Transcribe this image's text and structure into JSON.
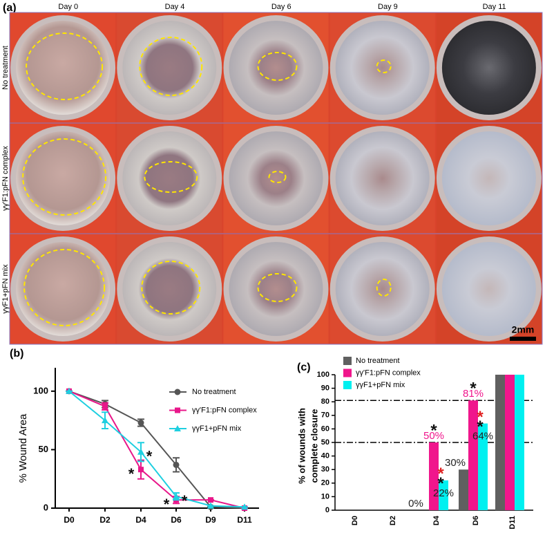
{
  "panel_a": {
    "label": "(a)",
    "days": [
      "Day 0",
      "Day 4",
      "Day 6",
      "Day 9",
      "Day  11"
    ],
    "rows": [
      "No treatment",
      "γγ'F1:pFN complex",
      "γγF1+pFN mix"
    ],
    "scale_bar": "2mm"
  },
  "chart_data": [
    {
      "type": "line",
      "panel_label": "(b)",
      "y_label": "% Wound Area",
      "categories": [
        "D0",
        "D2",
        "D4",
        "D6",
        "D9",
        "D11"
      ],
      "ylim": [
        0,
        120
      ],
      "yticks": [
        0,
        50,
        100
      ],
      "series": [
        {
          "name": "No treatment",
          "color": "#555555",
          "marker": "circle",
          "values": [
            100,
            89,
            73,
            37,
            1,
            0
          ],
          "errors": [
            0,
            3,
            3,
            6,
            0,
            0
          ]
        },
        {
          "name": "γγ'F1:pFN complex",
          "color": "#e8178a",
          "marker": "square",
          "values": [
            100,
            87,
            33,
            7,
            7,
            0
          ],
          "errors": [
            0,
            3,
            8,
            3,
            0,
            0
          ]
        },
        {
          "name": "γγF1+pFN mix",
          "color": "#1ecfe0",
          "marker": "triangle",
          "values": [
            100,
            75,
            48,
            10,
            2,
            1
          ],
          "errors": [
            0,
            7,
            8,
            3,
            0,
            0
          ]
        }
      ],
      "significance": [
        {
          "label": "*",
          "category": 2,
          "series": 1,
          "color": "#111111"
        },
        {
          "label": "*",
          "category": 2,
          "series": 2,
          "color": "#111111"
        },
        {
          "label": "*",
          "category": 3,
          "series": 1,
          "color": "#111111"
        },
        {
          "label": "*",
          "category": 3,
          "series": 2,
          "color": "#111111"
        }
      ]
    },
    {
      "type": "bar",
      "panel_label": "(c)",
      "y_label": [
        "% of wounds with",
        "complete closure"
      ],
      "categories": [
        "D0",
        "D2",
        "D4",
        "D6",
        "D11"
      ],
      "ylim": [
        0,
        100
      ],
      "yticks": [
        0,
        10,
        20,
        30,
        40,
        50,
        60,
        70,
        80,
        90,
        100
      ],
      "reference_lines": [
        50,
        81
      ],
      "series": [
        {
          "name": "No treatment",
          "color": "#606060",
          "values": [
            0,
            0,
            0,
            30,
            100
          ],
          "value_labels": [
            null,
            null,
            "0%",
            "30%",
            null
          ],
          "label_color": "#222222"
        },
        {
          "name": "γγ'F1:pFN complex",
          "color": "#f0168c",
          "values": [
            0,
            0,
            50,
            81,
            100
          ],
          "value_labels": [
            null,
            null,
            "50%",
            "81%",
            null
          ],
          "label_color": "#f0168c"
        },
        {
          "name": "γγF1+pFN mix",
          "color": "#00f0f0",
          "values": [
            0,
            0,
            22,
            64,
            100
          ],
          "value_labels": [
            null,
            null,
            "22%",
            "64%",
            null
          ],
          "label_color": "#222222"
        }
      ],
      "significance": [
        {
          "label": "*",
          "category": 2,
          "series": 1,
          "color": "#111111"
        },
        {
          "label": "*",
          "category": 2,
          "series": 2,
          "color": "#e02020"
        },
        {
          "label": "*",
          "category": 2,
          "series": 2,
          "color": "#111111"
        },
        {
          "label": "*",
          "category": 3,
          "series": 1,
          "color": "#111111"
        },
        {
          "label": "*",
          "category": 3,
          "series": 2,
          "color": "#e02020"
        },
        {
          "label": "*",
          "category": 3,
          "series": 2,
          "color": "#111111"
        }
      ]
    }
  ]
}
